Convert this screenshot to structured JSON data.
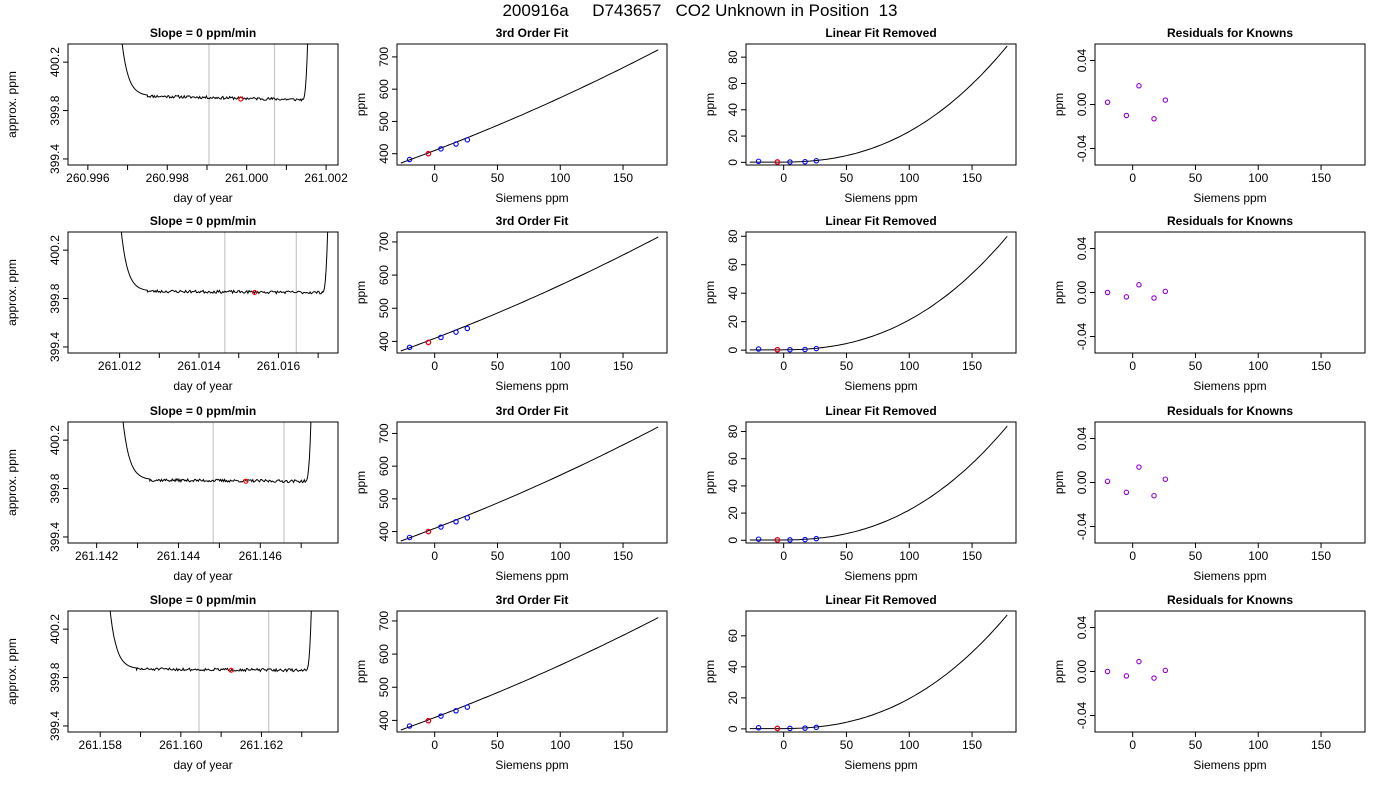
{
  "page_title": "200916a     D743657   CO2 Unknown in Position  13",
  "colors": {
    "curve": "#000000",
    "vline": "#c8c8c8",
    "unknown_point": "#ff0000",
    "known_point": "#0000ff",
    "residual_point": "#9400d3"
  },
  "chart_data": [
    {
      "row": 1,
      "panels": [
        {
          "type": "line",
          "title": "Slope =  0  ppm/min",
          "xlabel": "day of year",
          "ylabel": "approx. ppm",
          "xlim": [
            260.9955,
            261.0023
          ],
          "ylim": [
            399.35,
            400.35
          ],
          "xticks": [
            260.996,
            260.998,
            261.0,
            261.002
          ],
          "xtick_labels": [
            "260.996",
            "260.998",
            "261.000",
            "261.002"
          ],
          "yticks": [
            399.4,
            399.8,
            400.2
          ],
          "ytick_labels": [
            "399.4",
            "399.8",
            "400.2"
          ],
          "minor_xticks": [
            260.997,
            260.999,
            261.001
          ],
          "vlines": [
            260.99905,
            261.0007
          ],
          "trace": {
            "x_start": 260.9973,
            "x_flat_start": 260.9975,
            "x_flat_end": 261.0014,
            "x_end": 261.0016,
            "level_start": 399.92,
            "level_end": 399.89,
            "noise": 0.012,
            "seed": 11
          },
          "point": {
            "x": 260.99985,
            "y": 399.895
          }
        },
        {
          "type": "scatter",
          "title": "3rd Order Fit",
          "xlabel": "Siemens ppm",
          "ylabel": "ppm",
          "xlim": [
            -30,
            185
          ],
          "ylim": [
            365,
            740
          ],
          "xticks": [
            0,
            50,
            100,
            150
          ],
          "xtick_labels": [
            "0",
            "50",
            "100",
            "150"
          ],
          "yticks": [
            400,
            500,
            600,
            700
          ],
          "ytick_labels": [
            "400",
            "500",
            "600",
            "700"
          ],
          "curve": {
            "x_start": -27,
            "x_end": 178,
            "y_start": 371,
            "y_end": 722
          },
          "known_x": [
            -20,
            -5,
            5,
            17,
            26
          ],
          "known_y": [
            382,
            400,
            415,
            430,
            443
          ],
          "unknown": {
            "x": -5,
            "y": 400
          }
        },
        {
          "type": "scatter",
          "title": "Linear Fit Removed",
          "xlabel": "Siemens ppm",
          "ylabel": "ppm",
          "xlim": [
            -30,
            185
          ],
          "ylim": [
            -2,
            90
          ],
          "xticks": [
            0,
            50,
            100,
            150
          ],
          "xtick_labels": [
            "0",
            "50",
            "100",
            "150"
          ],
          "yticks": [
            0,
            20,
            40,
            60,
            80
          ],
          "ytick_labels": [
            "0",
            "20",
            "40",
            "60",
            "80"
          ],
          "curve": {
            "x_start": -27,
            "x_end": 178,
            "x_min": -5,
            "y_min": 0.2,
            "y_end": 88.5
          },
          "known_x": [
            -20,
            -5,
            5,
            17,
            26
          ],
          "known_y": [
            0.8,
            0.3,
            0.3,
            0.5,
            1.2
          ],
          "unknown": {
            "x": -5,
            "y": 0.3
          }
        },
        {
          "type": "scatter",
          "title": "Residuals for Knowns",
          "xlabel": "Siemens ppm",
          "ylabel": "ppm",
          "xlim": [
            -30,
            185
          ],
          "ylim": [
            -0.055,
            0.055
          ],
          "xticks": [
            0,
            50,
            100,
            150
          ],
          "xtick_labels": [
            "0",
            "50",
            "100",
            "150"
          ],
          "yticks": [
            -0.04,
            0.0,
            0.04
          ],
          "ytick_labels": [
            "-0.04",
            "0.00",
            "0.04"
          ],
          "known_x": [
            -20,
            -5,
            5,
            17,
            26
          ],
          "known_y": [
            0.002,
            -0.01,
            0.017,
            -0.013,
            0.004
          ]
        }
      ]
    },
    {
      "row": 2,
      "panels": [
        {
          "type": "line",
          "title": "Slope =  0  ppm/min",
          "xlabel": "day of year",
          "ylabel": "approx. ppm",
          "xlim": [
            261.0107,
            261.0175
          ],
          "ylim": [
            399.35,
            400.35
          ],
          "xticks": [
            261.012,
            261.014,
            261.016
          ],
          "xtick_labels": [
            "261.012",
            "261.014",
            "261.016"
          ],
          "yticks": [
            399.4,
            399.8,
            400.2
          ],
          "ytick_labels": [
            "399.4",
            "399.8",
            "400.2"
          ],
          "minor_xticks": [
            261.013,
            261.015,
            261.017
          ],
          "vlines": [
            261.01465,
            261.01645
          ],
          "trace": {
            "x_start": 261.0125,
            "x_flat_start": 261.0127,
            "x_flat_end": 261.0171,
            "x_end": 261.0173,
            "level_start": 399.86,
            "level_end": 399.85,
            "noise": 0.012,
            "seed": 23
          },
          "point": {
            "x": 261.0154,
            "y": 399.85
          }
        },
        {
          "type": "scatter",
          "title": "3rd Order Fit",
          "xlabel": "Siemens ppm",
          "ylabel": "ppm",
          "xlim": [
            -30,
            185
          ],
          "ylim": [
            365,
            730
          ],
          "xticks": [
            0,
            50,
            100,
            150
          ],
          "xtick_labels": [
            "0",
            "50",
            "100",
            "150"
          ],
          "yticks": [
            400,
            500,
            600,
            700
          ],
          "ytick_labels": [
            "400",
            "500",
            "600",
            "700"
          ],
          "curve": {
            "x_start": -27,
            "x_end": 178,
            "y_start": 371,
            "y_end": 715
          },
          "known_x": [
            -20,
            -5,
            5,
            17,
            26
          ],
          "known_y": [
            382,
            397,
            412,
            428,
            439
          ],
          "unknown": {
            "x": -5,
            "y": 397
          }
        },
        {
          "type": "scatter",
          "title": "Linear Fit Removed",
          "xlabel": "Siemens ppm",
          "ylabel": "ppm",
          "xlim": [
            -30,
            185
          ],
          "ylim": [
            -2,
            83
          ],
          "xticks": [
            0,
            50,
            100,
            150
          ],
          "xtick_labels": [
            "0",
            "50",
            "100",
            "150"
          ],
          "yticks": [
            0,
            20,
            40,
            60,
            80
          ],
          "ytick_labels": [
            "0",
            "20",
            "40",
            "60",
            "80"
          ],
          "curve": {
            "x_start": -27,
            "x_end": 178,
            "x_min": -5,
            "y_min": 0.2,
            "y_end": 80
          },
          "known_x": [
            -20,
            -5,
            5,
            17,
            26
          ],
          "known_y": [
            0.8,
            0.3,
            0.3,
            0.5,
            1.1
          ],
          "unknown": {
            "x": -5,
            "y": 0.3
          }
        },
        {
          "type": "scatter",
          "title": "Residuals for Knowns",
          "xlabel": "Siemens ppm",
          "ylabel": "ppm",
          "xlim": [
            -30,
            185
          ],
          "ylim": [
            -0.055,
            0.055
          ],
          "xticks": [
            0,
            50,
            100,
            150
          ],
          "xtick_labels": [
            "0",
            "50",
            "100",
            "150"
          ],
          "yticks": [
            -0.04,
            0.0,
            0.04
          ],
          "ytick_labels": [
            "-0.04",
            "0.00",
            "0.04"
          ],
          "known_x": [
            -20,
            -5,
            5,
            17,
            26
          ],
          "known_y": [
            0.0,
            -0.004,
            0.007,
            -0.005,
            0.001
          ]
        }
      ]
    },
    {
      "row": 3,
      "panels": [
        {
          "type": "line",
          "title": "Slope =  0  ppm/min",
          "xlabel": "day of year",
          "ylabel": "approx. ppm",
          "xlim": [
            261.1413,
            261.1479
          ],
          "ylim": [
            399.35,
            400.35
          ],
          "xticks": [
            261.142,
            261.144,
            261.146
          ],
          "xtick_labels": [
            "261.142",
            "261.144",
            "261.146"
          ],
          "yticks": [
            399.4,
            399.8,
            400.2
          ],
          "ytick_labels": [
            "399.4",
            "399.8",
            "400.2"
          ],
          "minor_xticks": [
            261.143,
            261.145,
            261.147
          ],
          "vlines": [
            261.14485,
            261.14658
          ],
          "trace": {
            "x_start": 261.1431,
            "x_flat_start": 261.1433,
            "x_flat_end": 261.1471,
            "x_end": 261.1473,
            "level_start": 399.87,
            "level_end": 399.86,
            "noise": 0.012,
            "seed": 37
          },
          "point": {
            "x": 261.14565,
            "y": 399.86
          }
        },
        {
          "type": "scatter",
          "title": "3rd Order Fit",
          "xlabel": "Siemens ppm",
          "ylabel": "ppm",
          "xlim": [
            -30,
            185
          ],
          "ylim": [
            365,
            735
          ],
          "xticks": [
            0,
            50,
            100,
            150
          ],
          "xtick_labels": [
            "0",
            "50",
            "100",
            "150"
          ],
          "yticks": [
            400,
            500,
            600,
            700
          ],
          "ytick_labels": [
            "400",
            "500",
            "600",
            "700"
          ],
          "curve": {
            "x_start": -27,
            "x_end": 178,
            "y_start": 371,
            "y_end": 720
          },
          "known_x": [
            -20,
            -5,
            5,
            17,
            26
          ],
          "known_y": [
            382,
            400,
            414,
            430,
            442
          ],
          "unknown": {
            "x": -5,
            "y": 400
          }
        },
        {
          "type": "scatter",
          "title": "Linear Fit Removed",
          "xlabel": "Siemens ppm",
          "ylabel": "ppm",
          "xlim": [
            -30,
            185
          ],
          "ylim": [
            -2,
            87
          ],
          "xticks": [
            0,
            50,
            100,
            150
          ],
          "xtick_labels": [
            "0",
            "50",
            "100",
            "150"
          ],
          "yticks": [
            0,
            20,
            40,
            60,
            80
          ],
          "ytick_labels": [
            "0",
            "20",
            "40",
            "60",
            "80"
          ],
          "curve": {
            "x_start": -27,
            "x_end": 178,
            "x_min": -5,
            "y_min": 0.2,
            "y_end": 84
          },
          "known_x": [
            -20,
            -5,
            5,
            17,
            26
          ],
          "known_y": [
            0.8,
            0.3,
            0.3,
            0.5,
            1.2
          ],
          "unknown": {
            "x": -5,
            "y": 0.3
          }
        },
        {
          "type": "scatter",
          "title": "Residuals for Knowns",
          "xlabel": "Siemens ppm",
          "ylabel": "ppm",
          "xlim": [
            -30,
            185
          ],
          "ylim": [
            -0.055,
            0.055
          ],
          "xticks": [
            0,
            50,
            100,
            150
          ],
          "xtick_labels": [
            "0",
            "50",
            "100",
            "150"
          ],
          "yticks": [
            -0.04,
            0.0,
            0.04
          ],
          "ytick_labels": [
            "-0.04",
            "0.00",
            "0.04"
          ],
          "known_x": [
            -20,
            -5,
            5,
            17,
            26
          ],
          "known_y": [
            0.001,
            -0.009,
            0.014,
            -0.012,
            0.003
          ]
        }
      ]
    },
    {
      "row": 4,
      "panels": [
        {
          "type": "line",
          "title": "Slope =  0  ppm/min",
          "xlabel": "day of year",
          "ylabel": "approx. ppm",
          "xlim": [
            261.1572,
            261.1639
          ],
          "ylim": [
            399.35,
            400.35
          ],
          "xticks": [
            261.158,
            261.16,
            261.162
          ],
          "xtick_labels": [
            "261.158",
            "261.160",
            "261.162"
          ],
          "yticks": [
            399.4,
            399.8,
            400.2
          ],
          "ytick_labels": [
            "399.4",
            "399.8",
            "400.2"
          ],
          "minor_xticks": [
            261.159,
            261.161,
            261.163
          ],
          "vlines": [
            261.16045,
            261.16218
          ],
          "trace": {
            "x_start": 261.1587,
            "x_flat_start": 261.1589,
            "x_flat_end": 261.1631,
            "x_end": 261.1633,
            "level_start": 399.87,
            "level_end": 399.86,
            "noise": 0.012,
            "seed": 51
          },
          "point": {
            "x": 261.16125,
            "y": 399.86
          }
        },
        {
          "type": "scatter",
          "title": "3rd Order Fit",
          "xlabel": "Siemens ppm",
          "ylabel": "ppm",
          "xlim": [
            -30,
            185
          ],
          "ylim": [
            365,
            730
          ],
          "xticks": [
            0,
            50,
            100,
            150
          ],
          "xtick_labels": [
            "0",
            "50",
            "100",
            "150"
          ],
          "yticks": [
            400,
            500,
            600,
            700
          ],
          "ytick_labels": [
            "400",
            "500",
            "600",
            "700"
          ],
          "curve": {
            "x_start": -27,
            "x_end": 178,
            "y_start": 371,
            "y_end": 710
          },
          "known_x": [
            -20,
            -5,
            5,
            17,
            26
          ],
          "known_y": [
            383,
            399,
            413,
            429,
            440
          ],
          "unknown": {
            "x": -5,
            "y": 399
          }
        },
        {
          "type": "scatter",
          "title": "Linear Fit Removed",
          "xlabel": "Siemens ppm",
          "ylabel": "ppm",
          "xlim": [
            -30,
            185
          ],
          "ylim": [
            -2,
            76
          ],
          "xticks": [
            0,
            50,
            100,
            150
          ],
          "xtick_labels": [
            "0",
            "50",
            "100",
            "150"
          ],
          "yticks": [
            0,
            20,
            40,
            60
          ],
          "ytick_labels": [
            "0",
            "20",
            "40",
            "60"
          ],
          "curve": {
            "x_start": -27,
            "x_end": 178,
            "x_min": -5,
            "y_min": 0.2,
            "y_end": 73.5
          },
          "known_x": [
            -20,
            -5,
            5,
            17,
            26
          ],
          "known_y": [
            0.7,
            0.3,
            0.3,
            0.5,
            1.0
          ],
          "unknown": {
            "x": -5,
            "y": 0.3
          }
        },
        {
          "type": "scatter",
          "title": "Residuals for Knowns",
          "xlabel": "Siemens ppm",
          "ylabel": "ppm",
          "xlim": [
            -30,
            185
          ],
          "ylim": [
            -0.055,
            0.055
          ],
          "xticks": [
            0,
            50,
            100,
            150
          ],
          "xtick_labels": [
            "0",
            "50",
            "100",
            "150"
          ],
          "yticks": [
            -0.04,
            0.0,
            0.04
          ],
          "ytick_labels": [
            "-0.04",
            "0.00",
            "0.04"
          ],
          "known_x": [
            -20,
            -5,
            5,
            17,
            26
          ],
          "known_y": [
            0.0,
            -0.004,
            0.009,
            -0.006,
            0.001
          ]
        }
      ]
    }
  ]
}
